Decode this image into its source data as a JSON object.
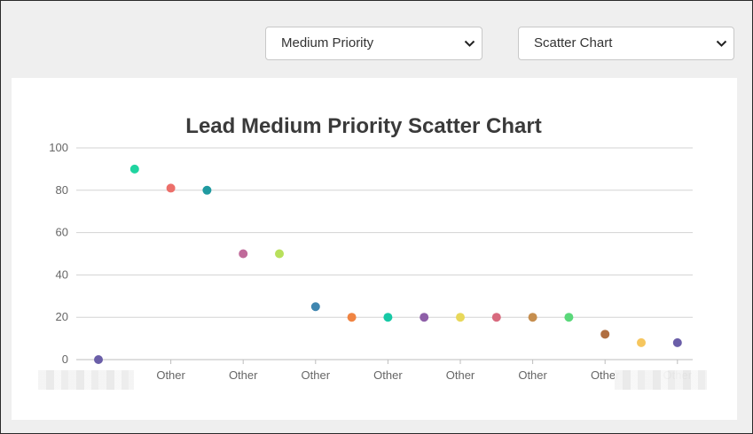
{
  "controls": {
    "priority_value": "Medium Priority",
    "chart_type_value": "Scatter Chart"
  },
  "chart_data": {
    "type": "scatter",
    "title": "Lead Medium Priority Scatter Chart",
    "xlabel": "",
    "ylabel": "",
    "ylim": [
      0,
      100
    ],
    "yticks": [
      0,
      20,
      40,
      60,
      80,
      100
    ],
    "grid": true,
    "categories": [
      "",
      "",
      "Other",
      "",
      "Other",
      "",
      "Other",
      "",
      "Other",
      "",
      "Other",
      "",
      "Other",
      "",
      "Other",
      "",
      "Other"
    ],
    "points": [
      {
        "value": 0,
        "color": "#6a5ea8"
      },
      {
        "value": 90,
        "color": "#1fd4a0"
      },
      {
        "value": 81,
        "color": "#ec6f6a"
      },
      {
        "value": 80,
        "color": "#1f9aa0"
      },
      {
        "value": 50,
        "color": "#c06a9a"
      },
      {
        "value": 50,
        "color": "#b8e05c"
      },
      {
        "value": 25,
        "color": "#3f86b0"
      },
      {
        "value": 20,
        "color": "#f08442"
      },
      {
        "value": 20,
        "color": "#17c9a6"
      },
      {
        "value": 20,
        "color": "#8e5fa8"
      },
      {
        "value": 20,
        "color": "#e8d85a"
      },
      {
        "value": 20,
        "color": "#d86a7e"
      },
      {
        "value": 20,
        "color": "#c68e4e"
      },
      {
        "value": 20,
        "color": "#5ad87a"
      },
      {
        "value": 12,
        "color": "#b06e40"
      },
      {
        "value": 8,
        "color": "#f6c65e"
      },
      {
        "value": 8,
        "color": "#6a5ea8"
      }
    ]
  }
}
